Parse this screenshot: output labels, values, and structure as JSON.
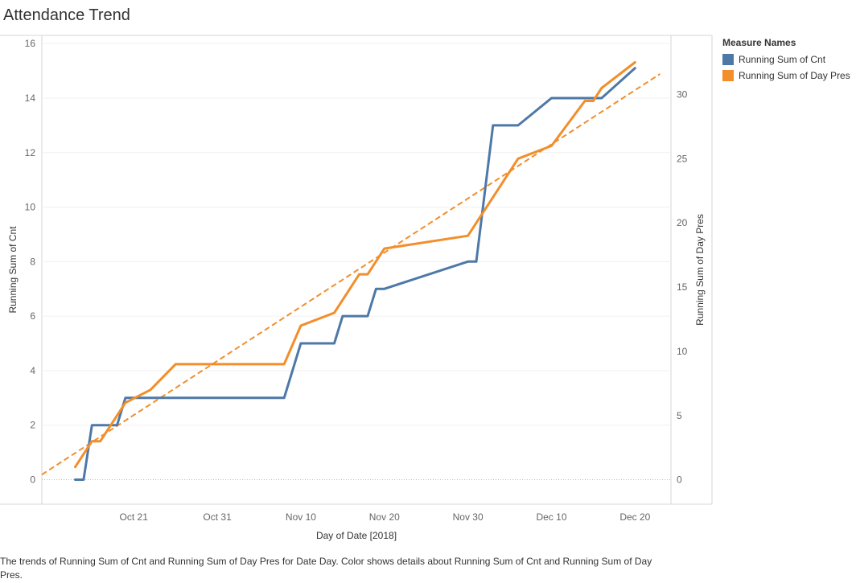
{
  "title": "Attendance Trend",
  "caption": "The trends of Running Sum of Cnt and Running Sum of Day Pres for Date Day.  Color shows details about Running Sum of Cnt and Running Sum of Day Pres.",
  "legend": {
    "title": "Measure Names",
    "items": [
      {
        "label": "Running Sum of Cnt",
        "color": "#4e79a7"
      },
      {
        "label": "Running Sum of Day Pres",
        "color": "#f28e2b"
      }
    ]
  },
  "chart_data": {
    "type": "line",
    "xlabel": "Day of Date [2018]",
    "ylabel_left": "Running Sum of Cnt",
    "ylabel_right": "Running Sum of Day Pres",
    "x_ticks": [
      "Oct 21",
      "Oct 31",
      "Nov 10",
      "Nov 20",
      "Nov 30",
      "Dec 10",
      "Dec 20"
    ],
    "y_left_ticks": [
      0,
      2,
      4,
      6,
      8,
      10,
      12,
      14,
      16
    ],
    "y_right_ticks": [
      0,
      5,
      10,
      15,
      20,
      25,
      30
    ],
    "ylim_left": [
      -0.9,
      16.3
    ],
    "ylim_right": [
      -1.9,
      34.6
    ],
    "xlim_days": [
      10,
      85.3
    ],
    "grid": true,
    "legend_position": "right",
    "series": [
      {
        "name": "Running Sum of Cnt",
        "axis": "left",
        "color": "#4e79a7",
        "points": [
          [
            "Oct 14",
            0
          ],
          [
            "Oct 15",
            0
          ],
          [
            "Oct 16",
            2
          ],
          [
            "Oct 19",
            2
          ],
          [
            "Oct 20",
            3
          ],
          [
            "Nov 8",
            3
          ],
          [
            "Nov 10",
            5
          ],
          [
            "Nov 14",
            5
          ],
          [
            "Nov 15",
            6
          ],
          [
            "Nov 18",
            6
          ],
          [
            "Nov 19",
            7
          ],
          [
            "Nov 20",
            7
          ],
          [
            "Nov 30",
            8
          ],
          [
            "Dec 1",
            8
          ],
          [
            "Dec 3",
            13
          ],
          [
            "Dec 6",
            13
          ],
          [
            "Dec 10",
            14
          ],
          [
            "Dec 16",
            14
          ],
          [
            "Dec 20",
            15.1
          ]
        ]
      },
      {
        "name": "Running Sum of Day Pres",
        "axis": "right",
        "color": "#f28e2b",
        "points": [
          [
            "Oct 14",
            1
          ],
          [
            "Oct 16",
            3
          ],
          [
            "Oct 17",
            3
          ],
          [
            "Oct 20",
            6
          ],
          [
            "Oct 23",
            7
          ],
          [
            "Oct 26",
            9
          ],
          [
            "Nov 8",
            9
          ],
          [
            "Nov 10",
            12
          ],
          [
            "Nov 14",
            13
          ],
          [
            "Nov 17",
            16
          ],
          [
            "Nov 18",
            16
          ],
          [
            "Nov 20",
            18
          ],
          [
            "Nov 30",
            19
          ],
          [
            "Dec 6",
            25
          ],
          [
            "Dec 10",
            26
          ],
          [
            "Dec 14",
            29.5
          ],
          [
            "Dec 15",
            29.5
          ],
          [
            "Dec 16",
            30.5
          ],
          [
            "Dec 20",
            32.5
          ]
        ]
      }
    ],
    "trend_line": {
      "series": "Running Sum of Day Pres",
      "style": "dashed",
      "color": "#f28e2b",
      "from": [
        "Oct 10",
        0.4
      ],
      "to": [
        "Dec 23",
        31.6
      ]
    }
  }
}
